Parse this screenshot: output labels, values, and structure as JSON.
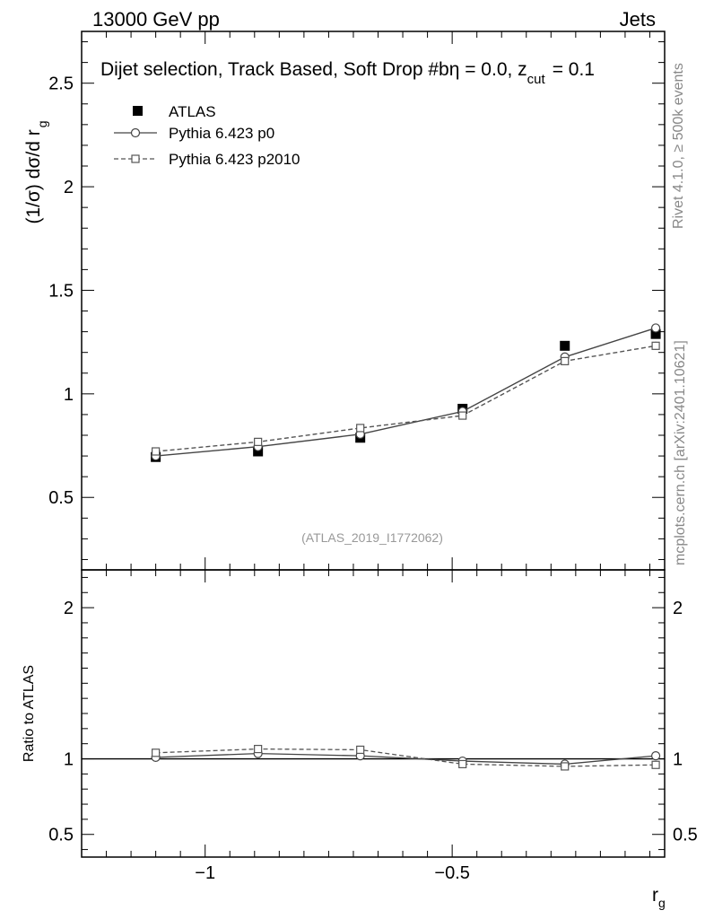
{
  "header": {
    "energy_label": "13000 GeV pp",
    "group_label": "Jets"
  },
  "side_labels": {
    "rivet": "Rivet 4.1.0, ≥ 500k events",
    "mcplots": "mcplots.cern.ch [arXiv:2401.10621]"
  },
  "colors": {
    "data": "#000000",
    "p0": "#444444",
    "p2010": "#555555",
    "watermark": "#999999",
    "side_text": "#888888"
  },
  "chart_data": [
    {
      "type": "line",
      "panel": "main",
      "title": "Dijet selection, Track Based, Soft Drop #b",
      "title_suffix": "η = 0.0, z",
      "title_sub": "cut",
      "title_end": "= 0.1",
      "xlabel": "r",
      "xlabel_sub": "g",
      "ylabel": "(1/σ) dσ/d r",
      "ylabel_sub": "g",
      "watermark": "(ATLAS_2019_I1772062)",
      "xlim": [
        -1.25,
        -0.07
      ],
      "ylim": [
        0.15,
        2.75
      ],
      "yticks": [
        0.5,
        1,
        1.5,
        2,
        2.5
      ],
      "ytick_labels": [
        "0.5",
        "1",
        "1.5",
        "2",
        "2.5"
      ],
      "legend_position": "top-left",
      "x": [
        -1.1,
        -0.893,
        -0.686,
        -0.479,
        -0.272,
        -0.088
      ],
      "series": [
        {
          "name": "ATLAS",
          "marker": "filled-square",
          "line": "none",
          "values": [
            0.695,
            0.722,
            0.788,
            0.928,
            1.232,
            1.289
          ],
          "errors": [
            0.012,
            0.012,
            0.012,
            0.014,
            0.016,
            0.018
          ]
        },
        {
          "name": "Pythia 6.423 p0",
          "marker": "open-circle",
          "line": "solid",
          "values": [
            0.7,
            0.745,
            0.805,
            0.915,
            1.178,
            1.318
          ],
          "errors": [
            0.004,
            0.004,
            0.004,
            0.005,
            0.008,
            0.02
          ]
        },
        {
          "name": "Pythia 6.423 p2010",
          "marker": "open-square",
          "line": "dashed",
          "values": [
            0.722,
            0.768,
            0.835,
            0.895,
            1.158,
            1.232
          ],
          "errors": [
            0.004,
            0.004,
            0.004,
            0.005,
            0.008,
            0.02
          ]
        }
      ]
    },
    {
      "type": "line",
      "panel": "ratio",
      "ylabel": "Ratio to ATLAS",
      "xlim": [
        -1.25,
        -0.07
      ],
      "ylim": [
        0.35,
        2.25
      ],
      "yticks": [
        0.5,
        1,
        2
      ],
      "ytick_labels": [
        "0.5",
        "1",
        "2"
      ],
      "xticks": [
        -1,
        -0.5
      ],
      "xtick_labels": [
        "−1",
        "−0.5"
      ],
      "x": [
        -1.1,
        -0.893,
        -0.686,
        -0.479,
        -0.272,
        -0.088
      ],
      "series": [
        {
          "name": "Pythia 6.423 p0",
          "marker": "open-circle",
          "line": "solid",
          "values": [
            1.01,
            1.035,
            1.02,
            0.985,
            0.965,
            1.02
          ]
        },
        {
          "name": "Pythia 6.423 p2010",
          "marker": "open-square",
          "line": "dashed",
          "values": [
            1.04,
            1.065,
            1.06,
            0.965,
            0.95,
            0.96
          ]
        }
      ]
    }
  ]
}
